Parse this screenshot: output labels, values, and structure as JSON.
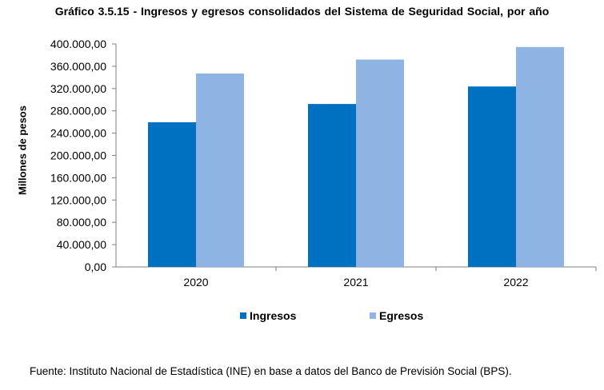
{
  "chart_data": {
    "type": "bar",
    "title": "Gráfico 3.5.15 - Ingresos y egresos consolidados del Sistema de Seguridad Social, por año",
    "ylabel": "Millones de pesos",
    "xlabel": "",
    "categories": [
      "2020",
      "2021",
      "2022"
    ],
    "series": [
      {
        "name": "Ingresos",
        "color": "#0070C0",
        "values": [
          259500,
          292300,
          323700
        ]
      },
      {
        "name": "Egresos",
        "color": "#8EB4E3",
        "values": [
          347000,
          372000,
          394500
        ]
      }
    ],
    "ylim": [
      0,
      400000
    ],
    "yticks": [
      "0,00",
      "40.000,00",
      "80.000,00",
      "120.000,00",
      "160.000,00",
      "200.000,00",
      "240.000,00",
      "280.000,00",
      "320.000,00",
      "360.000,00",
      "400.000,00"
    ],
    "grid": false,
    "legend": "bottom"
  },
  "source": "Fuente: Instituto Nacional de Estadística (INE) en base a datos del Banco de Previsión Social (BPS)."
}
